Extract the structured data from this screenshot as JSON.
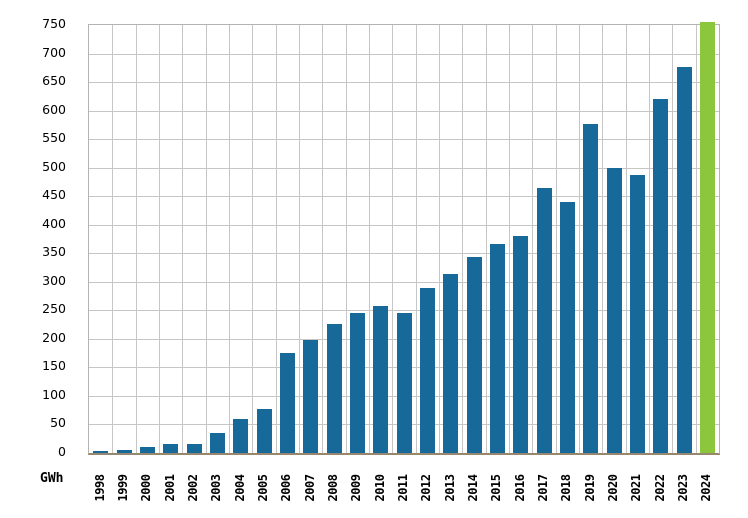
{
  "chart_data": {
    "type": "bar",
    "title": "",
    "unit_label": "GWh",
    "categories": [
      "1998",
      "1999",
      "2000",
      "2001",
      "2002",
      "2003",
      "2004",
      "2005",
      "2006",
      "2007",
      "2008",
      "2009",
      "2010",
      "2011",
      "2012",
      "2013",
      "2014",
      "2015",
      "2016",
      "2017",
      "2018",
      "2019",
      "2020",
      "2021",
      "2022",
      "2023",
      "2024"
    ],
    "values": [
      3,
      6,
      11,
      15,
      15,
      35,
      59,
      77,
      175,
      198,
      226,
      245,
      257,
      245,
      289,
      314,
      343,
      366,
      380,
      464,
      440,
      577,
      499,
      488,
      620,
      676,
      755
    ],
    "xlabel": "",
    "ylabel": "GWh",
    "ylim": [
      0,
      750
    ],
    "ytick_step": 50,
    "grid": true,
    "legend": false,
    "bar_color": "#17699a",
    "highlight_color": "#8cc63c",
    "highlight_index": 26,
    "note_highlight": "2024 bar is green and clipped at the top axis limit"
  },
  "colors": {
    "background": "#ffffff",
    "gridline": "#c6c6c6",
    "plot_border": "#b3b3b3",
    "axis_baseline": "#97876e",
    "text": "#000000"
  }
}
